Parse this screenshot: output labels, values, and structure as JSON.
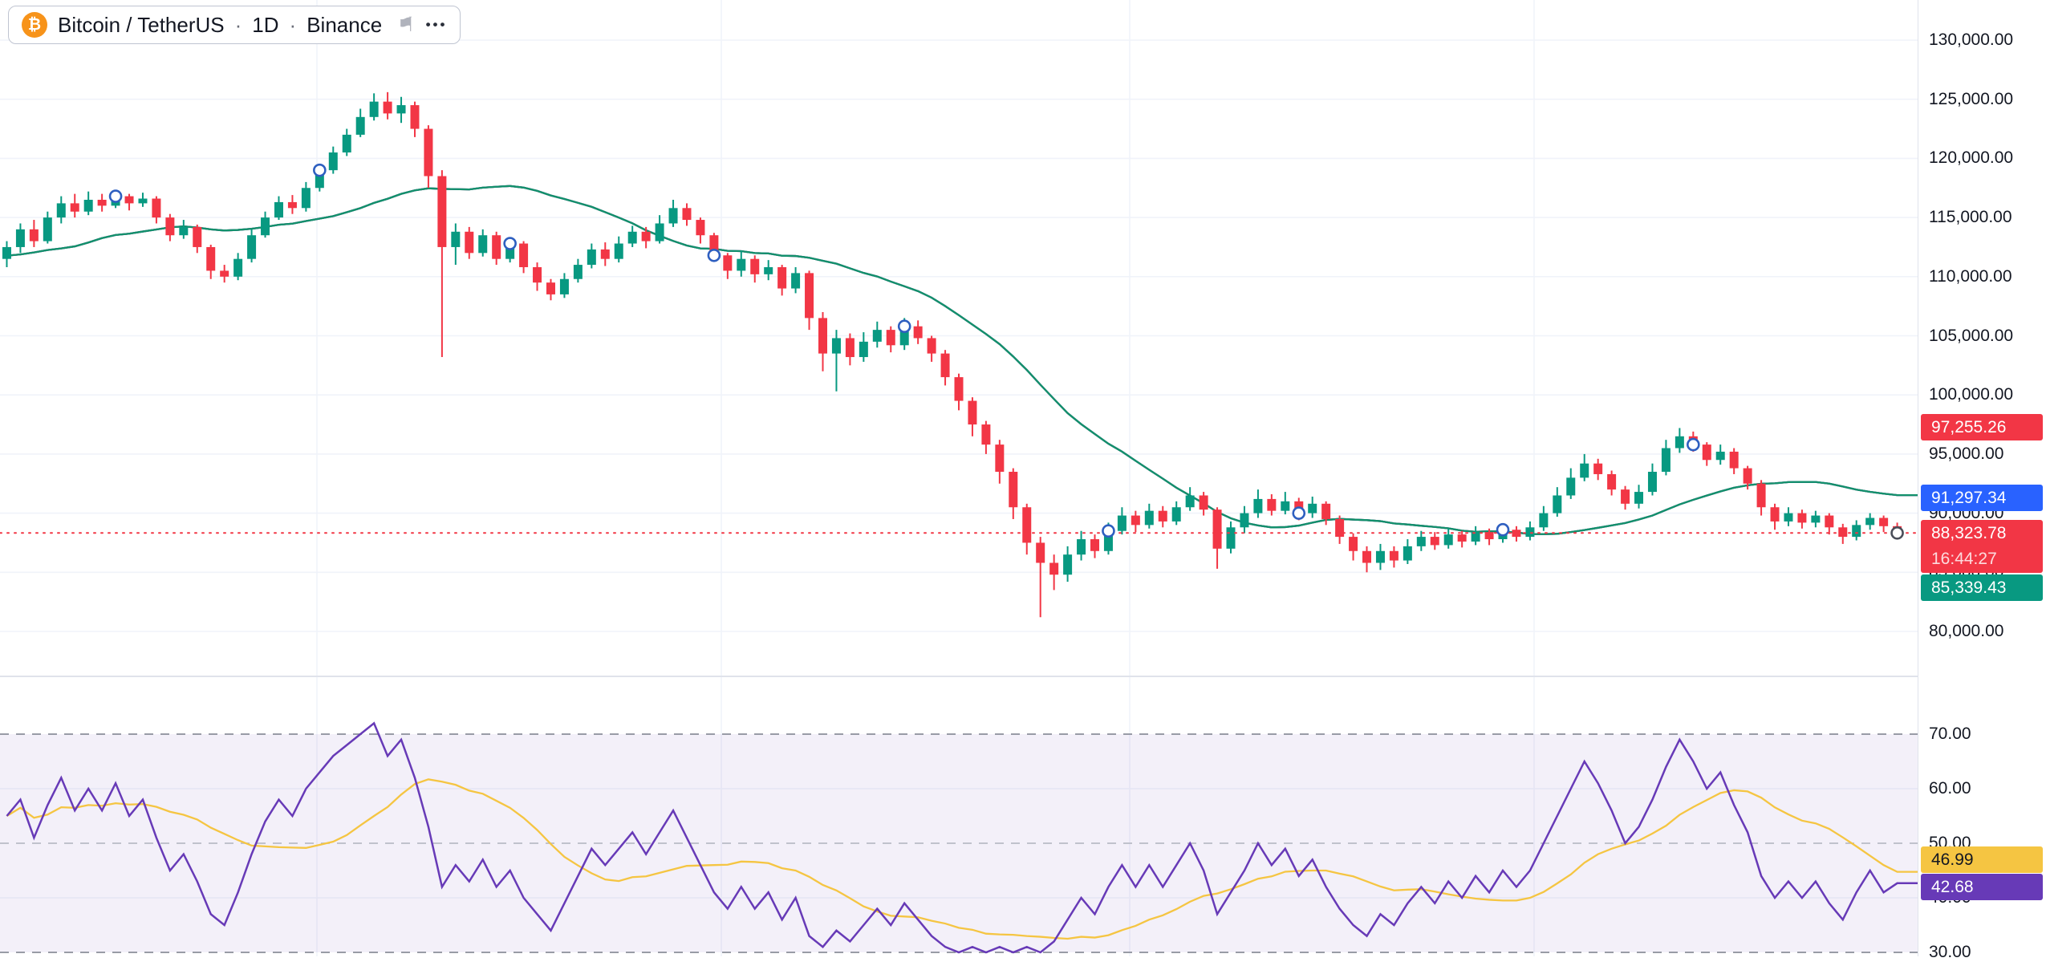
{
  "legend": {
    "symbol": "Bitcoin / TetherUS",
    "separator": "·",
    "interval": "1D",
    "exchange": "Binance",
    "title_full": "Bitcoin / TetherUS · 1D · Binance",
    "more_glyph": "•••"
  },
  "icons": {
    "bitcoin": "₿",
    "flag": "⚑"
  },
  "colors": {
    "up": "#089981",
    "down": "#f23645",
    "bb_upper": "#d94c4c",
    "bb_middle": "#2e5fc0",
    "bb_lower": "#12916b",
    "bb_fill": "rgba(46,95,192,0.07)",
    "last_price_line": "#f23645",
    "tag_upper": "#f23645",
    "tag_middle": "#2962ff",
    "tag_last": "#f23645",
    "tag_lower": "#089981",
    "rsi_line": "#673ab7",
    "rsi_ma": "#f5c542",
    "rsi_fill": "rgba(103,58,183,0.08)",
    "grid": "#f0f3fa",
    "axis_border": "#e0e3eb",
    "axis_text": "#131722"
  },
  "price_axis": {
    "ticks": [
      {
        "value": 130000,
        "label": "130,000.00"
      },
      {
        "value": 125000,
        "label": "125,000.00"
      },
      {
        "value": 120000,
        "label": "120,000.00"
      },
      {
        "value": 115000,
        "label": "115,000.00"
      },
      {
        "value": 110000,
        "label": "110,000.00"
      },
      {
        "value": 105000,
        "label": "105,000.00"
      },
      {
        "value": 100000,
        "label": "100,000.00"
      },
      {
        "value": 95000,
        "label": "95,000.00"
      },
      {
        "value": 90000,
        "label": "90,000.00"
      },
      {
        "value": 85000,
        "label": "85,000.00"
      },
      {
        "value": 80000,
        "label": "80,000.00"
      }
    ],
    "tags": {
      "upper_band": {
        "value": 97255.26,
        "label": "97,255.26"
      },
      "middle_band": {
        "value": 91297.34,
        "label": "91,297.34"
      },
      "last_price": {
        "value": 88323.78,
        "label": "88,323.78",
        "countdown": "16:44:27"
      },
      "lower_band": {
        "value": 85339.43,
        "label": "85,339.43"
      }
    }
  },
  "rsi_axis": {
    "ticks": [
      {
        "value": 70,
        "label": "70.00"
      },
      {
        "value": 60,
        "label": "60.00"
      },
      {
        "value": 50,
        "label": "50.00"
      },
      {
        "value": 40,
        "label": "40.00"
      },
      {
        "value": 30,
        "label": "30.00"
      }
    ],
    "tags": {
      "ma": {
        "value": 46.99,
        "label": "46.99"
      },
      "rsi": {
        "value": 42.68,
        "label": "42.68"
      }
    }
  },
  "chart_data": {
    "type": "candlestick",
    "title": "Bitcoin / TetherUS · 1D · Binance",
    "symbol": "Bitcoin / TetherUS",
    "interval": "1D",
    "exchange": "Binance",
    "price_axis_range_visible": [
      76000,
      133400
    ],
    "units_note": "OHLC values stored in thousands of USDT, estimated from pixels",
    "candles_ohlc_thousands": [
      [
        111.5,
        113.0,
        110.8,
        112.5
      ],
      [
        112.5,
        114.5,
        112.0,
        114.0
      ],
      [
        114.0,
        114.8,
        112.5,
        113.0
      ],
      [
        113.0,
        115.5,
        112.8,
        115.0
      ],
      [
        115.0,
        116.8,
        114.5,
        116.2
      ],
      [
        116.2,
        117.0,
        115.0,
        115.5
      ],
      [
        115.5,
        117.2,
        115.2,
        116.5
      ],
      [
        116.5,
        117.0,
        115.5,
        116.0
      ],
      [
        116.0,
        117.3,
        115.8,
        116.8
      ],
      [
        116.8,
        117.0,
        115.6,
        116.2
      ],
      [
        116.2,
        117.1,
        115.9,
        116.6
      ],
      [
        116.6,
        116.8,
        114.5,
        115.0
      ],
      [
        115.0,
        115.3,
        113.0,
        113.5
      ],
      [
        113.5,
        114.8,
        113.2,
        114.2
      ],
      [
        114.2,
        114.4,
        112.0,
        112.5
      ],
      [
        112.5,
        112.7,
        109.8,
        110.5
      ],
      [
        110.5,
        111.0,
        109.5,
        110.0
      ],
      [
        110.0,
        112.0,
        109.7,
        111.5
      ],
      [
        111.5,
        114.0,
        111.2,
        113.5
      ],
      [
        113.5,
        115.5,
        113.3,
        115.0
      ],
      [
        115.0,
        116.8,
        114.8,
        116.3
      ],
      [
        116.3,
        116.9,
        115.3,
        115.8
      ],
      [
        115.8,
        118.0,
        115.5,
        117.5
      ],
      [
        117.5,
        119.5,
        117.2,
        119.0
      ],
      [
        119.0,
        121.0,
        118.7,
        120.5
      ],
      [
        120.5,
        122.5,
        120.2,
        122.0
      ],
      [
        122.0,
        124.2,
        121.8,
        123.5
      ],
      [
        123.5,
        125.5,
        123.2,
        124.8
      ],
      [
        124.8,
        125.6,
        123.3,
        123.8
      ],
      [
        123.8,
        125.2,
        123.0,
        124.5
      ],
      [
        124.5,
        124.8,
        121.8,
        122.5
      ],
      [
        122.5,
        122.8,
        117.5,
        118.5
      ],
      [
        118.5,
        119.0,
        103.2,
        112.5
      ],
      [
        112.5,
        114.5,
        111.0,
        113.8
      ],
      [
        113.8,
        114.2,
        111.5,
        112.0
      ],
      [
        112.0,
        114.0,
        111.7,
        113.5
      ],
      [
        113.5,
        113.8,
        111.0,
        111.5
      ],
      [
        111.5,
        113.3,
        111.2,
        112.8
      ],
      [
        112.8,
        113.0,
        110.3,
        110.8
      ],
      [
        110.8,
        111.2,
        108.8,
        109.5
      ],
      [
        109.5,
        109.8,
        108.0,
        108.5
      ],
      [
        108.5,
        110.3,
        108.2,
        109.8
      ],
      [
        109.8,
        111.5,
        109.5,
        111.0
      ],
      [
        111.0,
        112.8,
        110.7,
        112.3
      ],
      [
        112.3,
        112.9,
        110.9,
        111.5
      ],
      [
        111.5,
        113.4,
        111.2,
        112.8
      ],
      [
        112.8,
        114.3,
        112.5,
        113.8
      ],
      [
        113.8,
        114.2,
        112.4,
        113.0
      ],
      [
        113.0,
        115.2,
        112.8,
        114.5
      ],
      [
        114.5,
        116.5,
        114.2,
        115.8
      ],
      [
        115.8,
        116.2,
        114.3,
        114.8
      ],
      [
        114.8,
        115.0,
        112.8,
        113.5
      ],
      [
        113.5,
        113.7,
        111.3,
        111.8
      ],
      [
        111.8,
        112.0,
        109.8,
        110.5
      ],
      [
        110.5,
        112.2,
        110.0,
        111.5
      ],
      [
        111.5,
        111.8,
        109.5,
        110.2
      ],
      [
        110.2,
        111.4,
        109.7,
        110.8
      ],
      [
        110.8,
        111.0,
        108.4,
        109.0
      ],
      [
        109.0,
        110.8,
        108.6,
        110.3
      ],
      [
        110.3,
        110.5,
        105.5,
        106.5
      ],
      [
        106.5,
        107.0,
        102.0,
        103.5
      ],
      [
        103.5,
        105.5,
        100.3,
        104.8
      ],
      [
        104.8,
        105.2,
        102.5,
        103.2
      ],
      [
        103.2,
        105.3,
        102.8,
        104.5
      ],
      [
        104.5,
        106.2,
        104.0,
        105.5
      ],
      [
        105.5,
        105.8,
        103.6,
        104.2
      ],
      [
        104.2,
        106.5,
        103.8,
        105.8
      ],
      [
        105.8,
        106.3,
        104.3,
        104.8
      ],
      [
        104.8,
        105.0,
        102.8,
        103.5
      ],
      [
        103.5,
        103.8,
        100.8,
        101.5
      ],
      [
        101.5,
        101.8,
        98.7,
        99.5
      ],
      [
        99.5,
        99.8,
        96.5,
        97.5
      ],
      [
        97.5,
        97.8,
        95.0,
        95.8
      ],
      [
        95.8,
        96.2,
        92.5,
        93.5
      ],
      [
        93.5,
        93.8,
        89.5,
        90.5
      ],
      [
        90.5,
        90.8,
        86.5,
        87.5
      ],
      [
        87.5,
        88.0,
        81.2,
        85.8
      ],
      [
        85.8,
        86.5,
        83.5,
        84.8
      ],
      [
        84.8,
        87.2,
        84.2,
        86.5
      ],
      [
        86.5,
        88.5,
        86.0,
        87.8
      ],
      [
        87.8,
        88.2,
        86.2,
        86.8
      ],
      [
        86.8,
        89.2,
        86.5,
        88.5
      ],
      [
        88.5,
        90.5,
        88.2,
        89.8
      ],
      [
        89.8,
        90.2,
        88.4,
        89.0
      ],
      [
        89.0,
        90.8,
        88.7,
        90.2
      ],
      [
        90.2,
        90.6,
        88.8,
        89.3
      ],
      [
        89.3,
        91.0,
        89.0,
        90.5
      ],
      [
        90.5,
        92.2,
        90.2,
        91.5
      ],
      [
        91.5,
        91.8,
        89.8,
        90.3
      ],
      [
        90.3,
        90.5,
        85.3,
        87.0
      ],
      [
        87.0,
        89.3,
        86.6,
        88.8
      ],
      [
        88.8,
        90.6,
        88.3,
        90.0
      ],
      [
        90.0,
        92.0,
        89.6,
        91.2
      ],
      [
        91.2,
        91.6,
        89.8,
        90.2
      ],
      [
        90.2,
        91.8,
        89.9,
        91.0
      ],
      [
        91.0,
        91.3,
        89.4,
        90.0
      ],
      [
        90.0,
        91.4,
        89.6,
        90.8
      ],
      [
        90.8,
        91.0,
        89.0,
        89.5
      ],
      [
        89.5,
        89.8,
        87.4,
        88.0
      ],
      [
        88.0,
        88.3,
        86.0,
        86.8
      ],
      [
        86.8,
        87.2,
        85.0,
        85.8
      ],
      [
        85.8,
        87.4,
        85.2,
        86.8
      ],
      [
        86.8,
        87.2,
        85.4,
        86.0
      ],
      [
        86.0,
        87.8,
        85.7,
        87.2
      ],
      [
        87.2,
        88.5,
        86.8,
        88.0
      ],
      [
        88.0,
        88.4,
        86.9,
        87.3
      ],
      [
        87.3,
        88.7,
        87.0,
        88.2
      ],
      [
        88.2,
        88.5,
        87.1,
        87.6
      ],
      [
        87.6,
        88.9,
        87.3,
        88.4
      ],
      [
        88.4,
        88.7,
        87.3,
        87.8
      ],
      [
        87.8,
        89.1,
        87.5,
        88.6
      ],
      [
        88.6,
        88.9,
        87.6,
        88.0
      ],
      [
        88.0,
        89.3,
        87.7,
        88.8
      ],
      [
        88.8,
        90.6,
        88.5,
        90.0
      ],
      [
        90.0,
        92.2,
        89.7,
        91.5
      ],
      [
        91.5,
        93.8,
        91.2,
        93.0
      ],
      [
        93.0,
        95.0,
        92.7,
        94.2
      ],
      [
        94.2,
        94.6,
        92.8,
        93.3
      ],
      [
        93.3,
        93.6,
        91.5,
        92.0
      ],
      [
        92.0,
        92.3,
        90.3,
        90.8
      ],
      [
        90.8,
        92.4,
        90.4,
        91.8
      ],
      [
        91.8,
        94.2,
        91.5,
        93.5
      ],
      [
        93.5,
        96.2,
        93.2,
        95.5
      ],
      [
        95.5,
        97.2,
        95.1,
        96.5
      ],
      [
        96.5,
        96.9,
        95.2,
        95.8
      ],
      [
        95.8,
        96.0,
        94.0,
        94.5
      ],
      [
        94.5,
        95.8,
        94.1,
        95.2
      ],
      [
        95.2,
        95.5,
        93.3,
        93.8
      ],
      [
        93.8,
        94.0,
        92.0,
        92.5
      ],
      [
        92.5,
        92.8,
        89.8,
        90.5
      ],
      [
        90.5,
        90.8,
        88.6,
        89.3
      ],
      [
        89.3,
        90.5,
        88.9,
        90.0
      ],
      [
        90.0,
        90.3,
        88.7,
        89.2
      ],
      [
        89.2,
        90.2,
        88.8,
        89.8
      ],
      [
        89.8,
        90.0,
        88.2,
        88.8
      ],
      [
        88.8,
        89.1,
        87.4,
        88.0
      ],
      [
        88.0,
        89.4,
        87.7,
        89.0
      ],
      [
        89.0,
        90.0,
        88.6,
        89.6
      ],
      [
        89.6,
        89.8,
        88.4,
        88.9
      ],
      [
        88.9,
        89.2,
        88.0,
        88.32
      ]
    ],
    "bollinger": {
      "period": 20,
      "stddev_mult": 2,
      "warmup_closes_thousands": [
        110.5,
        112.0,
        109.5,
        111.0,
        113.5,
        112.0,
        110.0,
        108.5,
        111.5,
        114.0,
        113.0,
        111.5,
        110.0,
        112.5,
        114.5,
        113.5,
        112.0,
        110.5,
        111.5,
        112.0
      ],
      "last_upper": 97255.26,
      "last_middle": 91297.34,
      "last_lower": 85339.43
    },
    "last_price": 88323.78,
    "bar_countdown": "16:44:27",
    "markers_candle_indices": [
      8,
      23,
      37,
      52,
      66,
      81,
      95,
      110,
      124
    ],
    "indicator": {
      "type": "rsi",
      "pane": "bottom",
      "levels": [
        70,
        50,
        30
      ],
      "band_range": [
        30,
        70
      ],
      "ma_type": "sma",
      "ma_length": 14,
      "last_value": 42.68,
      "ma_last_value": 46.99,
      "values": [
        55,
        58,
        51,
        57,
        62,
        56,
        60,
        56,
        61,
        55,
        58,
        51,
        45,
        48,
        43,
        37,
        35,
        41,
        48,
        54,
        58,
        55,
        60,
        63,
        66,
        68,
        70,
        72,
        66,
        69,
        62,
        53,
        42,
        46,
        43,
        47,
        42,
        45,
        40,
        37,
        34,
        39,
        44,
        49,
        46,
        49,
        52,
        48,
        52,
        56,
        51,
        46,
        41,
        38,
        42,
        38,
        41,
        36,
        40,
        33,
        31,
        34,
        32,
        35,
        38,
        35,
        39,
        36,
        33,
        31,
        30,
        31,
        30,
        31,
        30,
        31,
        30,
        32,
        36,
        40,
        37,
        42,
        46,
        42,
        46,
        42,
        46,
        50,
        45,
        37,
        41,
        45,
        50,
        46,
        49,
        44,
        47,
        42,
        38,
        35,
        33,
        37,
        35,
        39,
        42,
        39,
        43,
        40,
        44,
        41,
        45,
        42,
        45,
        50,
        55,
        60,
        65,
        61,
        56,
        50,
        53,
        58,
        64,
        69,
        65,
        60,
        63,
        57,
        52,
        44,
        40,
        43,
        40,
        43,
        39,
        36,
        41,
        45,
        41,
        42.68
      ]
    }
  }
}
